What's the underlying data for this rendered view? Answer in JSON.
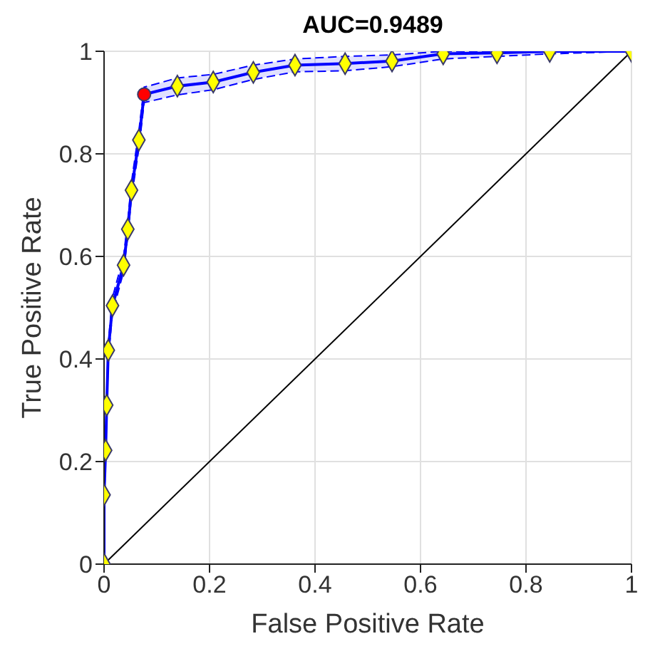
{
  "chart_data": {
    "type": "line",
    "title": "AUC=0.9489",
    "xlabel": "False Positive Rate",
    "ylabel": "True Positive Rate",
    "xlim": [
      0,
      1
    ],
    "ylim": [
      0,
      1
    ],
    "xticks": [
      0,
      0.2,
      0.4,
      0.6,
      0.8,
      1
    ],
    "yticks": [
      0,
      0.2,
      0.4,
      0.6,
      0.8,
      1
    ],
    "grid": true,
    "series": [
      {
        "color": "#0000ff",
        "marker": "none",
        "x": [
          0,
          0,
          0.003,
          0.005,
          0.008,
          0.016,
          0.037,
          0.045,
          0.052,
          0.066,
          0.076,
          0.139,
          0.207,
          0.283,
          0.362,
          0.457,
          0.546,
          0.643,
          0.745,
          0.845,
          1
        ],
        "values": [
          0,
          0.135,
          0.222,
          0.31,
          0.417,
          0.504,
          0.583,
          0.653,
          0.729,
          0.827,
          0.916,
          0.932,
          0.94,
          0.959,
          0.973,
          0.976,
          0.981,
          0.995,
          0.997,
          1,
          1
        ],
        "lower": [
          0,
          0.12,
          0.205,
          0.295,
          0.4,
          0.49,
          0.57,
          0.64,
          0.715,
          0.81,
          0.9,
          0.915,
          0.925,
          0.945,
          0.96,
          0.962,
          0.97,
          0.985,
          0.99,
          0.995,
          1
        ],
        "upper": [
          0,
          0.15,
          0.24,
          0.325,
          0.43,
          0.52,
          0.6,
          0.67,
          0.745,
          0.845,
          0.93,
          0.948,
          0.955,
          0.973,
          0.985,
          0.99,
          0.993,
          1,
          1,
          1,
          1
        ]
      },
      {
        "type": "scatter",
        "color": "#ffff00",
        "marker": "diamond",
        "x": [
          0,
          0,
          0.003,
          0.005,
          0.008,
          0.016,
          0.037,
          0.045,
          0.052,
          0.066,
          0.139,
          0.207,
          0.283,
          0.362,
          0.457,
          0.546,
          0.643,
          0.745,
          0.845,
          1
        ],
        "values": [
          0,
          0.135,
          0.222,
          0.31,
          0.417,
          0.504,
          0.583,
          0.653,
          0.729,
          0.827,
          0.932,
          0.94,
          0.959,
          0.973,
          0.976,
          0.981,
          0.995,
          0.997,
          1,
          1
        ]
      },
      {
        "type": "scatter",
        "color": "#ff0000",
        "marker": "circle",
        "x": [
          0.076
        ],
        "values": [
          0.916
        ]
      },
      {
        "color": "#000000",
        "marker": "none",
        "x": [
          0,
          1
        ],
        "values": [
          0,
          1
        ]
      }
    ]
  }
}
